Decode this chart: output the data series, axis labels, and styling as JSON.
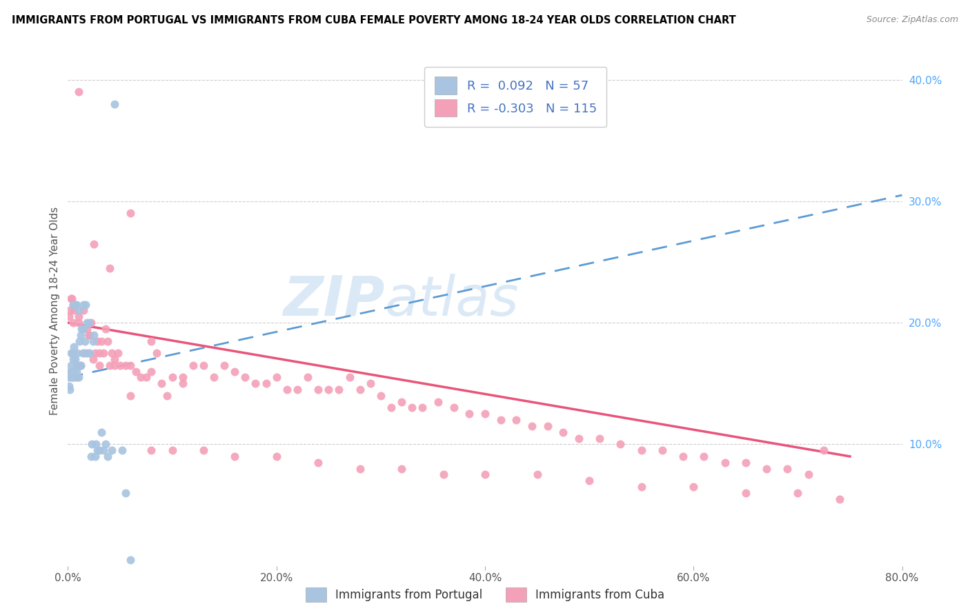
{
  "title": "IMMIGRANTS FROM PORTUGAL VS IMMIGRANTS FROM CUBA FEMALE POVERTY AMONG 18-24 YEAR OLDS CORRELATION CHART",
  "source": "Source: ZipAtlas.com",
  "ylabel": "Female Poverty Among 18-24 Year Olds",
  "watermark_zip": "ZIP",
  "watermark_atlas": "atlas",
  "r_portugal": 0.092,
  "n_portugal": 57,
  "r_cuba": -0.303,
  "n_cuba": 115,
  "xlim": [
    0.0,
    0.8
  ],
  "ylim": [
    0.0,
    0.42
  ],
  "yticks_right": [
    0.1,
    0.2,
    0.3,
    0.4
  ],
  "yticklabels_right": [
    "10.0%",
    "20.0%",
    "30.0%",
    "40.0%"
  ],
  "color_portugal": "#a8c4e0",
  "color_cuba": "#f4a0b8",
  "trendline_portugal": "#5b9bd5",
  "trendline_cuba": "#e8547a",
  "legend_label_portugal": "Immigrants from Portugal",
  "legend_label_cuba": "Immigrants from Cuba",
  "portugal_x": [
    0.001,
    0.001,
    0.002,
    0.002,
    0.003,
    0.003,
    0.003,
    0.004,
    0.004,
    0.004,
    0.005,
    0.005,
    0.005,
    0.005,
    0.006,
    0.006,
    0.006,
    0.007,
    0.007,
    0.007,
    0.008,
    0.008,
    0.009,
    0.009,
    0.01,
    0.01,
    0.011,
    0.011,
    0.012,
    0.012,
    0.013,
    0.014,
    0.015,
    0.015,
    0.016,
    0.017,
    0.018,
    0.019,
    0.02,
    0.021,
    0.022,
    0.023,
    0.024,
    0.025,
    0.026,
    0.027,
    0.028,
    0.03,
    0.032,
    0.034,
    0.036,
    0.038,
    0.042,
    0.045,
    0.052,
    0.055,
    0.06
  ],
  "portugal_y": [
    0.148,
    0.155,
    0.16,
    0.145,
    0.155,
    0.165,
    0.175,
    0.155,
    0.16,
    0.16,
    0.155,
    0.17,
    0.175,
    0.215,
    0.16,
    0.175,
    0.18,
    0.155,
    0.17,
    0.215,
    0.16,
    0.215,
    0.165,
    0.175,
    0.155,
    0.21,
    0.165,
    0.185,
    0.165,
    0.19,
    0.195,
    0.175,
    0.195,
    0.215,
    0.185,
    0.215,
    0.2,
    0.175,
    0.2,
    0.175,
    0.09,
    0.1,
    0.185,
    0.19,
    0.09,
    0.1,
    0.095,
    0.095,
    0.11,
    0.095,
    0.1,
    0.09,
    0.095,
    0.38,
    0.095,
    0.06,
    0.005
  ],
  "cuba_x": [
    0.001,
    0.002,
    0.003,
    0.004,
    0.005,
    0.006,
    0.007,
    0.008,
    0.009,
    0.01,
    0.012,
    0.014,
    0.015,
    0.016,
    0.018,
    0.02,
    0.022,
    0.024,
    0.026,
    0.028,
    0.03,
    0.032,
    0.034,
    0.036,
    0.038,
    0.04,
    0.042,
    0.045,
    0.048,
    0.05,
    0.055,
    0.06,
    0.065,
    0.07,
    0.075,
    0.08,
    0.085,
    0.09,
    0.095,
    0.1,
    0.11,
    0.12,
    0.13,
    0.14,
    0.15,
    0.16,
    0.17,
    0.18,
    0.19,
    0.2,
    0.21,
    0.22,
    0.23,
    0.24,
    0.25,
    0.26,
    0.27,
    0.28,
    0.29,
    0.3,
    0.31,
    0.32,
    0.33,
    0.34,
    0.355,
    0.37,
    0.385,
    0.4,
    0.415,
    0.43,
    0.445,
    0.46,
    0.475,
    0.49,
    0.51,
    0.53,
    0.55,
    0.57,
    0.59,
    0.61,
    0.63,
    0.65,
    0.67,
    0.69,
    0.71,
    0.725,
    0.005,
    0.01,
    0.02,
    0.03,
    0.045,
    0.06,
    0.08,
    0.1,
    0.13,
    0.16,
    0.2,
    0.24,
    0.28,
    0.32,
    0.36,
    0.4,
    0.45,
    0.5,
    0.55,
    0.6,
    0.65,
    0.7,
    0.74,
    0.01,
    0.025,
    0.04,
    0.06,
    0.08,
    0.11
  ],
  "cuba_y": [
    0.205,
    0.21,
    0.22,
    0.22,
    0.2,
    0.21,
    0.215,
    0.165,
    0.155,
    0.205,
    0.165,
    0.195,
    0.21,
    0.175,
    0.195,
    0.19,
    0.2,
    0.17,
    0.175,
    0.185,
    0.175,
    0.185,
    0.175,
    0.195,
    0.185,
    0.165,
    0.175,
    0.17,
    0.175,
    0.165,
    0.165,
    0.14,
    0.16,
    0.155,
    0.155,
    0.16,
    0.175,
    0.15,
    0.14,
    0.155,
    0.155,
    0.165,
    0.165,
    0.155,
    0.165,
    0.16,
    0.155,
    0.15,
    0.15,
    0.155,
    0.145,
    0.145,
    0.155,
    0.145,
    0.145,
    0.145,
    0.155,
    0.145,
    0.15,
    0.14,
    0.13,
    0.135,
    0.13,
    0.13,
    0.135,
    0.13,
    0.125,
    0.125,
    0.12,
    0.12,
    0.115,
    0.115,
    0.11,
    0.105,
    0.105,
    0.1,
    0.095,
    0.095,
    0.09,
    0.09,
    0.085,
    0.085,
    0.08,
    0.08,
    0.075,
    0.095,
    0.215,
    0.2,
    0.19,
    0.165,
    0.165,
    0.165,
    0.095,
    0.095,
    0.095,
    0.09,
    0.09,
    0.085,
    0.08,
    0.08,
    0.075,
    0.075,
    0.075,
    0.07,
    0.065,
    0.065,
    0.06,
    0.06,
    0.055,
    0.39,
    0.265,
    0.245,
    0.29,
    0.185,
    0.15
  ]
}
